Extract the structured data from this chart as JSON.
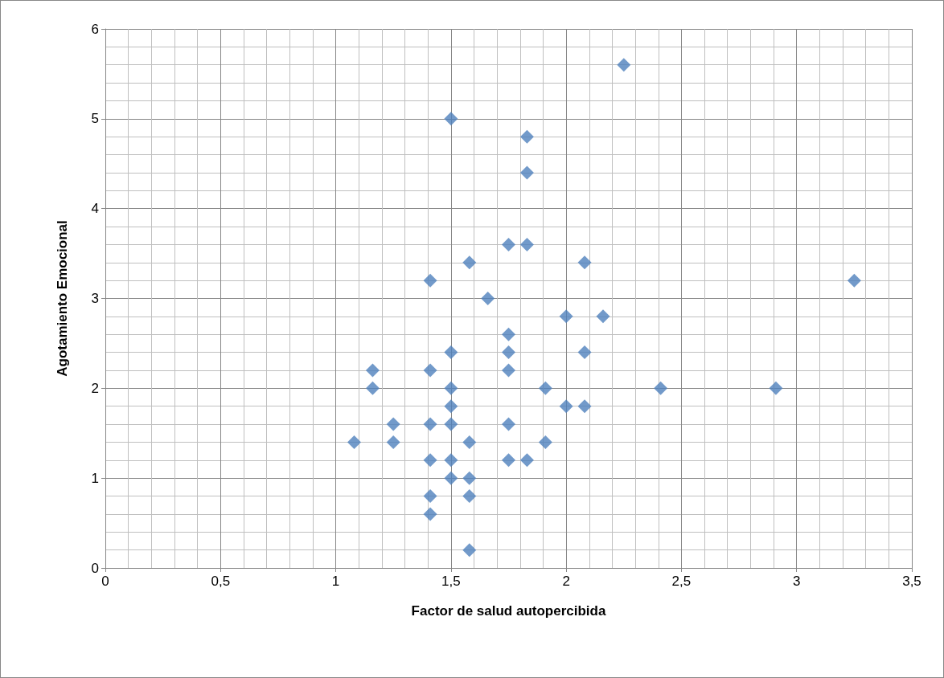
{
  "chart_data": {
    "type": "scatter",
    "xlabel": "Factor de salud autopercibida",
    "ylabel": "Agotamiento Emocional",
    "marker": "diamond",
    "grid": true,
    "xlim": [
      0,
      3.5
    ],
    "xticks": [
      0,
      {
        "value": 0.5,
        "label": "0,5"
      },
      1,
      {
        "value": 1.5,
        "label": "1,5"
      },
      2,
      {
        "value": 2.5,
        "label": "2,5"
      },
      3,
      {
        "value": 3.5,
        "label": "3,5"
      }
    ],
    "ylim": [
      0,
      6
    ],
    "yticks": [
      0,
      1,
      2,
      3,
      4,
      5,
      6
    ],
    "series": [
      {
        "color": "#4f81bd",
        "x": [
          1.08,
          1.16,
          1.16,
          1.25,
          1.25,
          1.41,
          1.41,
          1.41,
          1.41,
          1.41,
          1.41,
          1.5,
          1.5,
          1.5,
          1.5,
          1.5,
          1.5,
          1.5,
          1.58,
          1.58,
          1.58,
          1.58,
          1.58,
          1.66,
          1.75,
          1.75,
          1.75,
          1.75,
          1.75,
          1.75,
          1.83,
          1.83,
          1.83,
          1.83,
          1.91,
          1.91,
          2.0,
          2.0,
          2.08,
          2.08,
          2.08,
          2.16,
          2.25,
          2.41,
          2.91,
          3.25
        ],
        "values": [
          1.4,
          2.2,
          2.0,
          1.6,
          1.4,
          3.2,
          2.2,
          1.6,
          1.2,
          0.8,
          0.6,
          5.0,
          2.4,
          2.0,
          1.8,
          1.6,
          1.2,
          1.0,
          3.4,
          1.4,
          1.0,
          0.8,
          0.2,
          3.0,
          3.6,
          2.6,
          2.4,
          2.2,
          1.6,
          1.2,
          4.8,
          4.4,
          3.6,
          1.2,
          2.0,
          1.4,
          2.8,
          1.8,
          3.4,
          2.4,
          1.8,
          2.8,
          5.6,
          2.0,
          2.0,
          3.2
        ]
      }
    ]
  }
}
